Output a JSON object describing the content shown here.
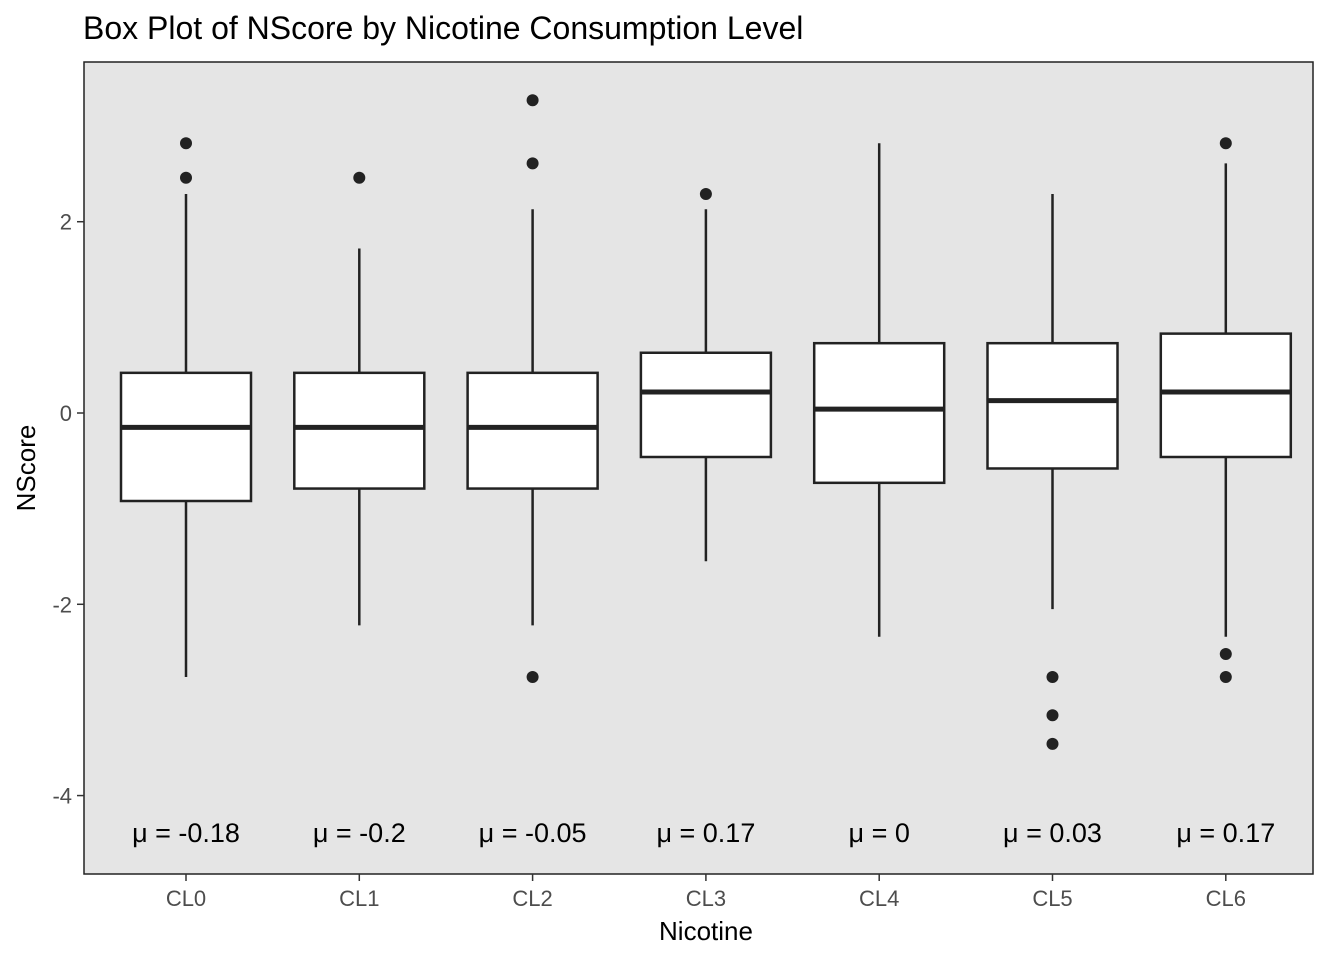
{
  "chart_data": {
    "type": "box",
    "title": "Box Plot of NScore by Nicotine Consumption Level",
    "xlabel": "Nicotine",
    "ylabel": "NScore",
    "categories": [
      "CL0",
      "CL1",
      "CL2",
      "CL3",
      "CL4",
      "CL5",
      "CL6"
    ],
    "ylim": [
      -4.82,
      3.67
    ],
    "yticks": [
      -4,
      -2,
      0,
      2
    ],
    "ytick_labels": [
      "-4",
      "-2",
      "0",
      "2"
    ],
    "grid": false,
    "panel_background": "#e5e5e5",
    "box_fill": "#ffffff",
    "line_color": "#222222",
    "boxes": [
      {
        "category": "CL0",
        "whisker_low": -2.76,
        "q1": -0.92,
        "median": -0.15,
        "q3": 0.42,
        "whisker_high": 2.29,
        "outliers": [
          2.82,
          2.46
        ],
        "mean_label": "μ = -0.18"
      },
      {
        "category": "CL1",
        "whisker_low": -2.22,
        "q1": -0.79,
        "median": -0.15,
        "q3": 0.42,
        "whisker_high": 1.72,
        "outliers": [
          2.46
        ],
        "mean_label": "μ = -0.2"
      },
      {
        "category": "CL2",
        "whisker_low": -2.22,
        "q1": -0.79,
        "median": -0.15,
        "q3": 0.42,
        "whisker_high": 2.13,
        "outliers": [
          3.27,
          2.61,
          -2.76
        ],
        "mean_label": "μ = -0.05"
      },
      {
        "category": "CL3",
        "whisker_low": -1.55,
        "q1": -0.46,
        "median": 0.22,
        "q3": 0.63,
        "whisker_high": 2.13,
        "outliers": [
          2.29
        ],
        "mean_label": "μ = 0.17"
      },
      {
        "category": "CL4",
        "whisker_low": -2.34,
        "q1": -0.73,
        "median": 0.04,
        "q3": 0.73,
        "whisker_high": 2.82,
        "outliers": [],
        "mean_label": "μ = 0"
      },
      {
        "category": "CL5",
        "whisker_low": -2.05,
        "q1": -0.58,
        "median": 0.13,
        "q3": 0.73,
        "whisker_high": 2.29,
        "outliers": [
          -2.76,
          -3.16,
          -3.46
        ],
        "mean_label": "μ = 0.03"
      },
      {
        "category": "CL6",
        "whisker_low": -2.34,
        "q1": -0.46,
        "median": 0.22,
        "q3": 0.83,
        "whisker_high": 2.61,
        "outliers": [
          2.82,
          -2.52,
          -2.76
        ],
        "mean_label": "μ = 0.17"
      }
    ],
    "mean_label_y": -4.38
  }
}
